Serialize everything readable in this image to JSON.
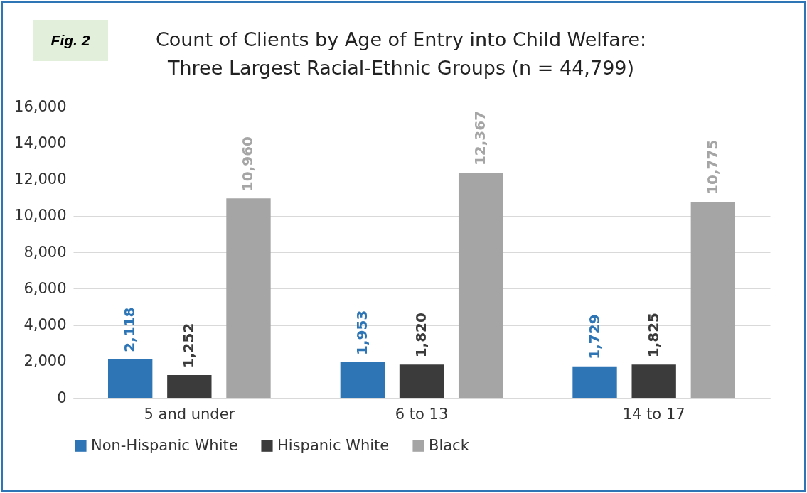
{
  "chart_data": {
    "type": "bar",
    "title": "Count of Clients by Age of Entry into Child Welfare: Three Largest Racial-Ethnic Groups (n = 44,799)",
    "annotations": [
      "Fig. 2"
    ],
    "categories": [
      "5 and under",
      "6 to 13",
      "14 to 17"
    ],
    "series": [
      {
        "name": "Non-Hispanic White",
        "color": "#2e75b6",
        "values": [
          2118,
          1953,
          1729
        ],
        "value_labels": [
          "2,118",
          "1,953",
          "1,729"
        ]
      },
      {
        "name": "Hispanic White",
        "color": "#3b3b3b",
        "values": [
          1252,
          1820,
          1825
        ],
        "value_labels": [
          "1,252",
          "1,820",
          "1,825"
        ]
      },
      {
        "name": "Black",
        "color": "#a5a5a5",
        "values": [
          10960,
          12367,
          10775
        ],
        "value_labels": [
          "10,960",
          "12,367",
          "10,775"
        ]
      }
    ],
    "ylim": [
      0,
      16000
    ],
    "yticks": [
      0,
      {
        "value": 2000,
        "label": "2,000"
      },
      {
        "value": 4000,
        "label": "4,000"
      },
      {
        "value": 6000,
        "label": "6,000"
      },
      {
        "value": 8000,
        "label": "8,000"
      },
      {
        "value": 10000,
        "label": "10,000"
      },
      {
        "value": 12000,
        "label": "12,000"
      },
      {
        "value": 14000,
        "label": "14,000"
      },
      {
        "value": 16000,
        "label": "16,000"
      }
    ],
    "grid": "y",
    "legend": "bottom"
  }
}
